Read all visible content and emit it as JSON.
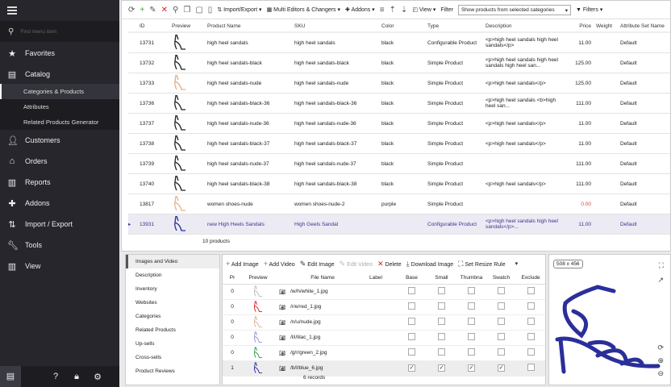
{
  "sidebar": {
    "search_placeholder": "Find menu item",
    "items": [
      {
        "label": "Favorites",
        "icon": "star-icon"
      },
      {
        "label": "Catalog",
        "icon": "box-icon"
      },
      {
        "label": "Customers",
        "icon": "user-icon"
      },
      {
        "label": "Orders",
        "icon": "basket-icon"
      },
      {
        "label": "Reports",
        "icon": "chart-icon"
      },
      {
        "label": "Addons",
        "icon": "puzzle-icon"
      },
      {
        "label": "Import / Export",
        "icon": "arrows-icon"
      },
      {
        "label": "Tools",
        "icon": "wrench-icon"
      },
      {
        "label": "View",
        "icon": "columns-icon"
      }
    ],
    "catalog_sub": [
      "Categories & Products",
      "Attributes",
      "Related Products Generator"
    ]
  },
  "toolbar": {
    "import_export": "Import/Export",
    "multi_editors": "Multi Editors & Changers",
    "addons": "Addons",
    "view": "View",
    "filter_label": "Filter",
    "filter_value": "Show products from selected categories",
    "filters": "Filters"
  },
  "grid": {
    "columns": [
      "ID",
      "Preview",
      "Product Name",
      "SKU",
      "Color",
      "Type",
      "Description",
      "Price",
      "Weight",
      "Attribute Set Name"
    ],
    "rows": [
      {
        "id": "13731",
        "shoe": "#222",
        "name": "high heel sandals",
        "sku": "high heel sandals",
        "color": "black",
        "type": "Configurable Product",
        "desc": "<p>high heel sandals high heel sandals</p>",
        "price": "11.00",
        "set": "Default"
      },
      {
        "id": "13732",
        "shoe": "#222",
        "name": "high heel sandals-black",
        "sku": "high heel sandals-black",
        "color": "black",
        "type": "Simple Product",
        "desc": "<p>high heel sandals high heel sandals high heel san...",
        "price": "125.00",
        "set": "Default"
      },
      {
        "id": "13733",
        "shoe": "#d9b08c",
        "name": "high heel sandals-nude",
        "sku": "high heel sandals-nude",
        "color": "black",
        "type": "Simple Product",
        "desc": "<p>high heel sandals</p>",
        "price": "125.00",
        "set": "Default"
      },
      {
        "id": "13736",
        "shoe": "#222",
        "name": "high heel sandals-black-36",
        "sku": "high heel sandals-black-36",
        "color": "black",
        "type": "Simple Product",
        "desc": "<p>high heel sandals <b>high heel san...",
        "price": "111.00",
        "set": "Default"
      },
      {
        "id": "13737",
        "shoe": "#222",
        "name": "high heel sandals-nude-36",
        "sku": "high heel sandals-nude-36",
        "color": "black",
        "type": "Simple Product",
        "desc": "<p>high heel sandals</p>",
        "price": "11.00",
        "set": "Default"
      },
      {
        "id": "13738",
        "shoe": "#222",
        "name": "high heel sandals-black-37",
        "sku": "high heel sandals-black-37",
        "color": "black",
        "type": "Simple Product",
        "desc": "<p>high heel sandals</p>",
        "price": "11.00",
        "set": "Default"
      },
      {
        "id": "13739",
        "shoe": "#222",
        "name": "high heel sandals-nude-37",
        "sku": "high heel sandals-nude-37",
        "color": "black",
        "type": "Simple Product",
        "desc": "",
        "price": "111.00",
        "set": "Default"
      },
      {
        "id": "13740",
        "shoe": "#222",
        "name": "high heel sandals-black-38",
        "sku": "high heel sandals-black-38",
        "color": "black",
        "type": "Simple Product",
        "desc": "<p>high heel sandals</p>",
        "price": "111.00",
        "set": "Default"
      },
      {
        "id": "13817",
        "shoe": "#e0b48e",
        "name": "women shoes-nude",
        "sku": "women shoes-nude-2",
        "color": "purple",
        "type": "Simple Product",
        "desc": "",
        "price": "0.00",
        "set": "Default"
      },
      {
        "id": "13931",
        "shoe": "#2b2f9a",
        "name": "new High Heels Sandals",
        "sku": "High Geels Sandal",
        "color": "",
        "type": "Configurable Product",
        "desc": "<p>high heel sandals high heel sandals</p>...",
        "price": "11.00",
        "set": "Default"
      }
    ],
    "footer": "10 products"
  },
  "detail_tabs": [
    "Images and Video",
    "Description",
    "Inventory",
    "Websites",
    "Categories",
    "Related Products",
    "Up-sells",
    "Cross-sells",
    "Product Reviews"
  ],
  "images": {
    "toolbar": [
      "Add Image",
      "Add Video",
      "Edit Image",
      "Edit Video",
      "Delete",
      "Download Image",
      "Set Resize Rule"
    ],
    "columns": [
      "Pr",
      "Preview",
      "File Name",
      "Label",
      "Base",
      "Small",
      "Thumbna",
      "Swatch",
      "Exclude"
    ],
    "rows": [
      {
        "pos": "0",
        "color": "#bbb",
        "file": "/w/h/white_1.jpg",
        "checks": [
          false,
          false,
          false,
          false,
          false
        ]
      },
      {
        "pos": "0",
        "color": "#d22",
        "file": "/r/e/red_1.jpg",
        "checks": [
          false,
          false,
          false,
          false,
          false
        ]
      },
      {
        "pos": "0",
        "color": "#d9b08c",
        "file": "/n/u/nude.jpg",
        "checks": [
          false,
          false,
          false,
          false,
          false
        ]
      },
      {
        "pos": "0",
        "color": "#9a8fd0",
        "file": "/l/i/lilac_1.jpg",
        "checks": [
          false,
          false,
          false,
          false,
          false
        ]
      },
      {
        "pos": "0",
        "color": "#2a9a4a",
        "file": "/g/r/green_2.jpg",
        "checks": [
          false,
          false,
          false,
          false,
          false
        ]
      },
      {
        "pos": "1",
        "color": "#2b2f9a",
        "file": "/b/l/blue_6.jpg",
        "checks": [
          true,
          true,
          true,
          true,
          false
        ]
      }
    ],
    "footer": "6 records"
  },
  "preview": {
    "dimensions": "508 x 456",
    "color": "#2b2f9a"
  }
}
